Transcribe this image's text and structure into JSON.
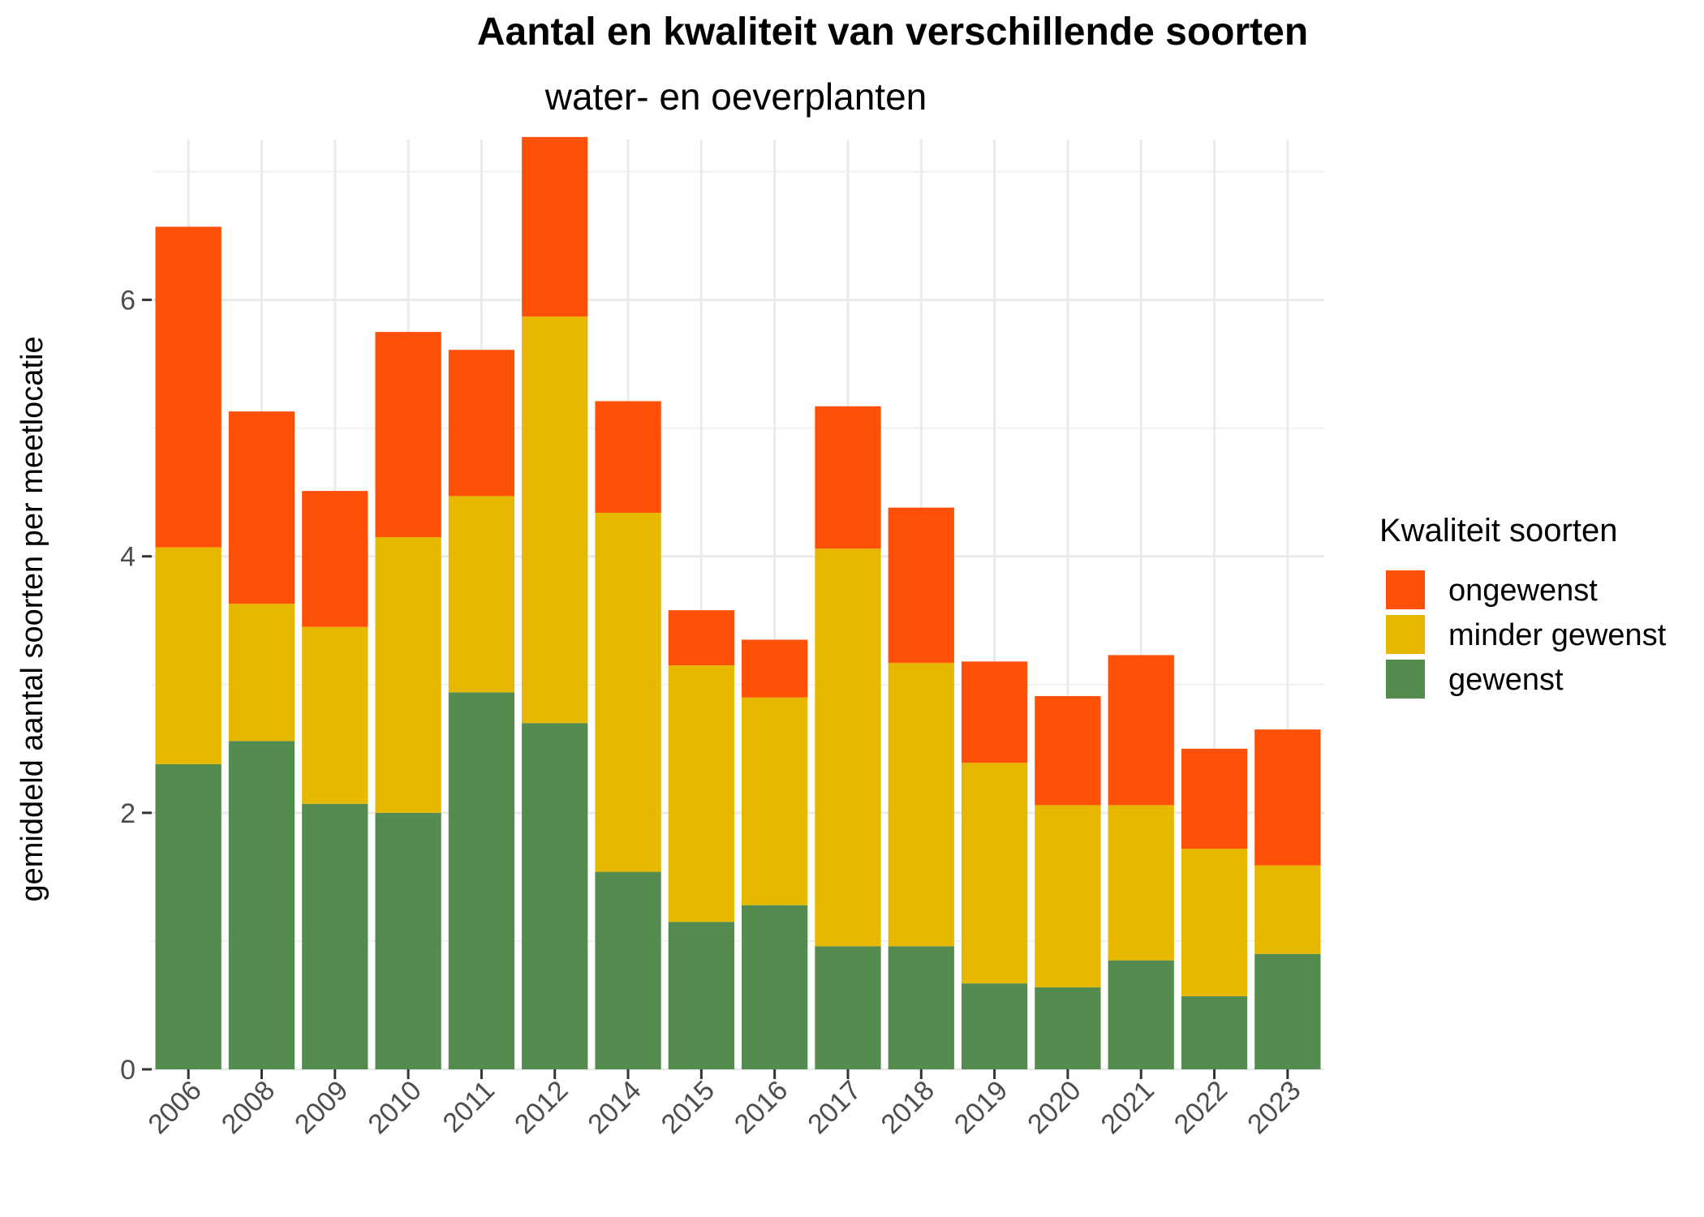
{
  "chart_data": {
    "type": "bar",
    "stacked": true,
    "title": "Aantal en kwaliteit van verschillende soorten",
    "subtitle": "water- en oeverplanten",
    "xlabel": "",
    "ylabel": "gemiddeld aantal soorten per meetlocatie",
    "ylim": [
      0,
      7.25
    ],
    "y_ticks": [
      0,
      2,
      4,
      6
    ],
    "grid": true,
    "legend_position": "right",
    "legend_title": "Kwaliteit soorten",
    "categories": [
      "2006",
      "2008",
      "2009",
      "2010",
      "2011",
      "2012",
      "2014",
      "2015",
      "2016",
      "2017",
      "2018",
      "2019",
      "2020",
      "2021",
      "2022",
      "2023"
    ],
    "series": [
      {
        "name": "gewenst",
        "color": "#548B4F",
        "values": [
          2.38,
          2.56,
          2.07,
          2.0,
          2.94,
          2.7,
          1.54,
          1.15,
          1.28,
          0.96,
          0.96,
          0.67,
          0.64,
          0.85,
          0.57,
          0.9
        ]
      },
      {
        "name": "minder gewenst",
        "color": "#E6B800",
        "values": [
          1.69,
          1.07,
          1.38,
          2.15,
          1.53,
          3.17,
          2.8,
          2.0,
          1.62,
          3.1,
          2.21,
          1.72,
          1.42,
          1.21,
          1.15,
          0.69
        ]
      },
      {
        "name": "ongewenst",
        "color": "#FF5008",
        "values": [
          2.5,
          1.5,
          1.06,
          1.6,
          1.14,
          1.4,
          0.87,
          0.43,
          0.45,
          1.11,
          1.21,
          0.79,
          0.85,
          1.17,
          0.78,
          1.06
        ]
      }
    ],
    "legend_order": [
      "ongewenst",
      "minder gewenst",
      "gewenst"
    ]
  }
}
